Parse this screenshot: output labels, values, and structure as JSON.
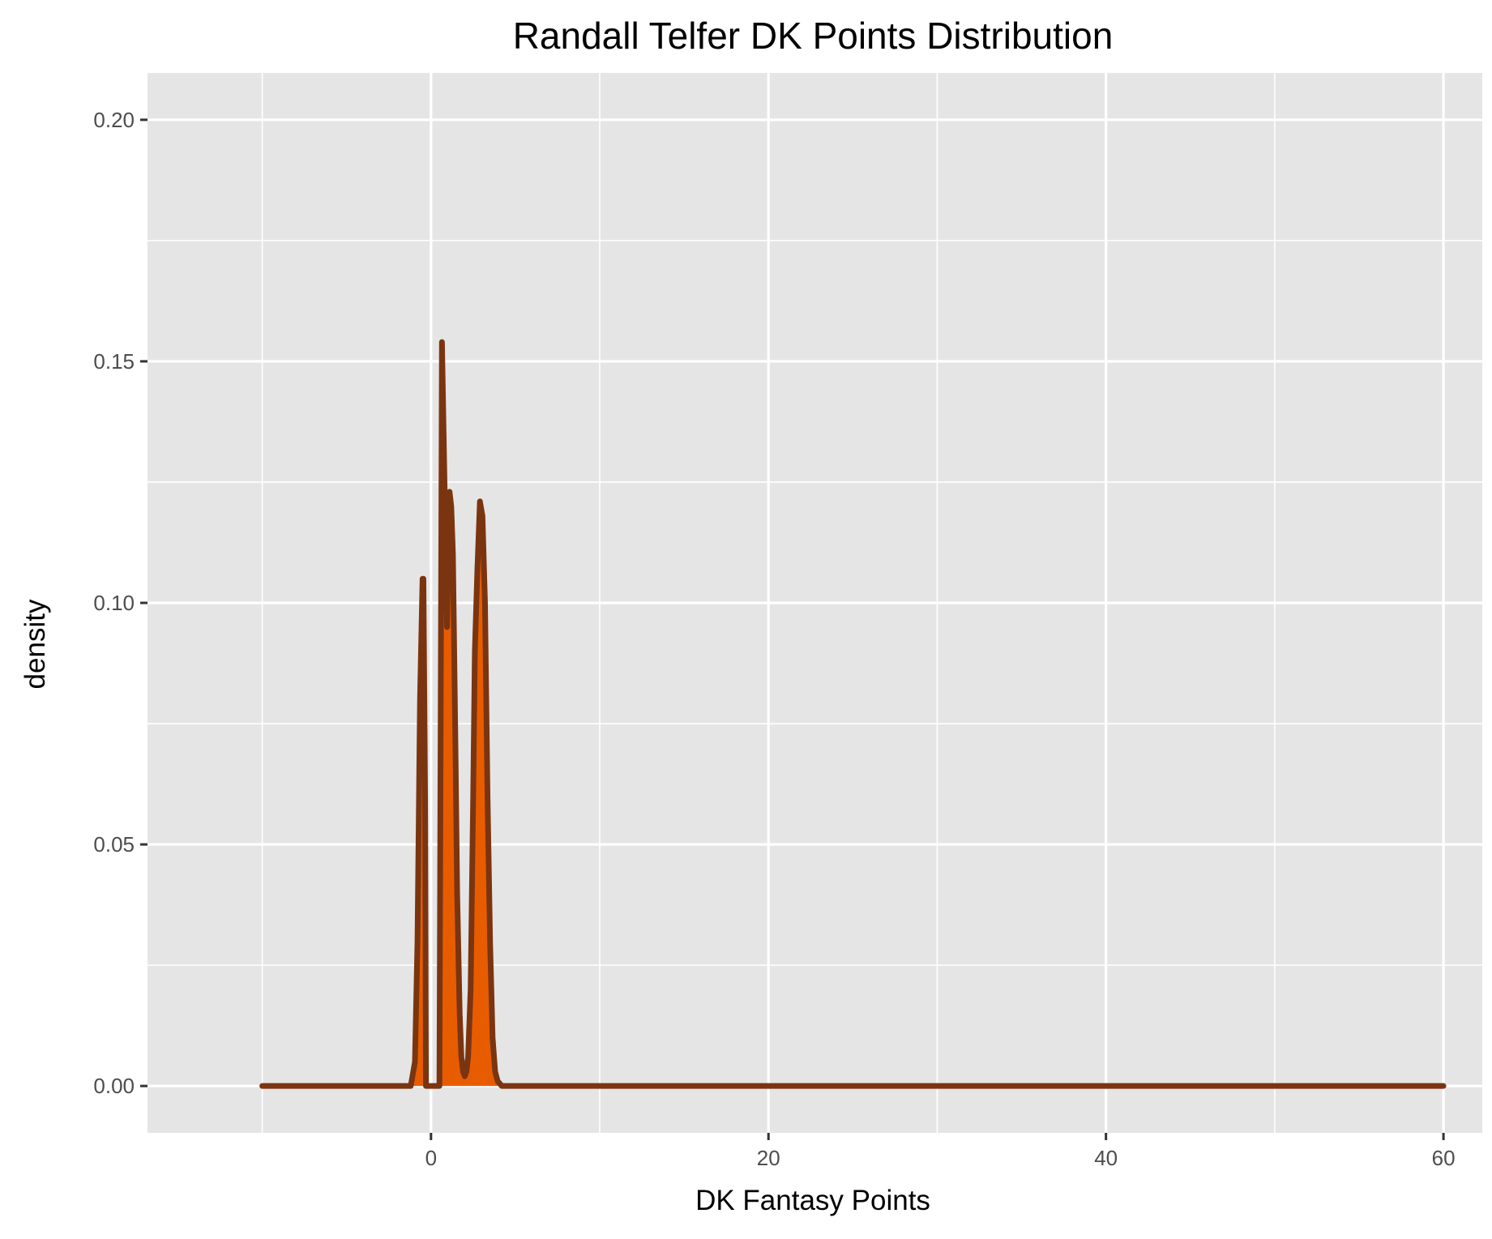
{
  "chart_data": {
    "type": "area",
    "title": "Randall Telfer DK Points Distribution",
    "xlabel": "DK Fantasy Points",
    "ylabel": "density",
    "xlim": [
      -16.8,
      62.3
    ],
    "ylim": [
      -0.0097,
      0.2097
    ],
    "x_ticks": [
      0,
      20,
      40,
      60
    ],
    "x_tick_labels": [
      "0",
      "20",
      "40",
      "60"
    ],
    "y_ticks": [
      0.0,
      0.05,
      0.1,
      0.15,
      0.2
    ],
    "y_tick_labels": [
      "0.00",
      "0.05",
      "0.10",
      "0.15",
      "0.20"
    ],
    "x_minor_ticks": [
      -10,
      10,
      30,
      50
    ],
    "y_minor_ticks": [
      0.025,
      0.075,
      0.125,
      0.175
    ],
    "grid": true,
    "legend": "none",
    "colors": {
      "panel_background": "#e5e5e5",
      "grid": "#ffffff",
      "fill": "#e85c00",
      "line": "#7a3510",
      "tick": "#333333"
    },
    "series": [
      {
        "x": [
          -10.0,
          -1.2,
          -0.95,
          -0.8,
          -0.65,
          -0.5,
          -0.45,
          -0.35,
          -0.3,
          0.0,
          0.5,
          0.65,
          0.8,
          0.95,
          1.1,
          1.2,
          1.3,
          1.45,
          1.55,
          1.7,
          1.8,
          1.9,
          2.0,
          2.1,
          2.2,
          2.35,
          2.5,
          2.6,
          2.75,
          2.9,
          3.05,
          3.2,
          3.35,
          3.5,
          3.65,
          3.8,
          3.95,
          4.2,
          5.0,
          10.0,
          20.0,
          30.0,
          40.0,
          50.0,
          60.0
        ],
        "y": [
          0.0,
          0.0,
          0.005,
          0.03,
          0.08,
          0.105,
          0.105,
          0.06,
          0.0,
          0.0,
          0.0,
          0.154,
          0.125,
          0.095,
          0.123,
          0.12,
          0.11,
          0.07,
          0.04,
          0.015,
          0.006,
          0.003,
          0.002,
          0.003,
          0.006,
          0.02,
          0.06,
          0.09,
          0.107,
          0.121,
          0.118,
          0.1,
          0.06,
          0.03,
          0.01,
          0.003,
          0.001,
          0.0,
          0.0,
          0.0,
          0.0,
          0.0,
          0.0,
          0.0,
          0.0
        ]
      }
    ]
  }
}
